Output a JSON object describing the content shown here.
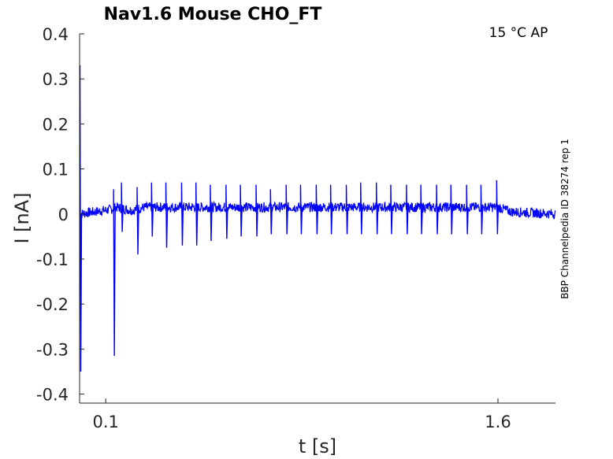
{
  "chart_data": {
    "type": "line",
    "title": "Nav1.6  Mouse  CHO_FT",
    "annotation": "15 °C  AP",
    "side_label": "BBP Channelpedia ID 38274 rep 1",
    "xlabel": "t [s]",
    "ylabel": "I [nA]",
    "xlim": [
      0.0,
      1.82
    ],
    "ylim": [
      -0.42,
      0.4
    ],
    "xticks": [
      0.1,
      1.6
    ],
    "xtick_labels": [
      "0.1",
      "1.6"
    ],
    "yticks": [
      0.4,
      0.3,
      0.2,
      0.1,
      0,
      -0.1,
      -0.2,
      -0.3,
      -0.4
    ],
    "ytick_labels": [
      "0.4",
      "0.3",
      "0.2",
      "0.1",
      "0",
      "-0.1",
      "-0.2",
      "-0.3",
      "-0.4"
    ],
    "grid": false,
    "series": [
      {
        "color": "#0000ff",
        "baseline": [
          [
            0.0,
            0.0
          ],
          [
            0.12,
            0.01
          ],
          [
            0.14,
            0.015
          ],
          [
            0.2,
            0.008
          ],
          [
            0.25,
            0.015
          ],
          [
            1.6,
            0.015
          ],
          [
            1.65,
            0.005
          ],
          [
            1.82,
            0.0
          ]
        ],
        "spikes": [
          {
            "t": 0.0,
            "peak": 0.33,
            "trough": -0.35
          },
          {
            "t": 0.13,
            "peak": 0.055,
            "trough": -0.315
          },
          {
            "t": 0.16,
            "peak": 0.07,
            "trough": -0.04
          },
          {
            "t": 0.22,
            "peak": 0.06,
            "trough": -0.09
          },
          {
            "t": 0.275,
            "peak": 0.07,
            "trough": -0.05
          },
          {
            "t": 0.33,
            "peak": 0.07,
            "trough": -0.075
          },
          {
            "t": 0.39,
            "peak": 0.07,
            "trough": -0.07
          },
          {
            "t": 0.445,
            "peak": 0.07,
            "trough": -0.07
          },
          {
            "t": 0.5,
            "peak": 0.065,
            "trough": -0.06
          },
          {
            "t": 0.56,
            "peak": 0.065,
            "trough": -0.055
          },
          {
            "t": 0.615,
            "peak": 0.065,
            "trough": -0.05
          },
          {
            "t": 0.675,
            "peak": 0.065,
            "trough": -0.05
          },
          {
            "t": 0.73,
            "peak": 0.055,
            "trough": -0.045
          },
          {
            "t": 0.79,
            "peak": 0.065,
            "trough": -0.045
          },
          {
            "t": 0.845,
            "peak": 0.065,
            "trough": -0.045
          },
          {
            "t": 0.905,
            "peak": 0.065,
            "trough": -0.045
          },
          {
            "t": 0.96,
            "peak": 0.065,
            "trough": -0.045
          },
          {
            "t": 1.02,
            "peak": 0.065,
            "trough": -0.045
          },
          {
            "t": 1.075,
            "peak": 0.07,
            "trough": -0.045
          },
          {
            "t": 1.135,
            "peak": 0.07,
            "trough": -0.045
          },
          {
            "t": 1.19,
            "peak": 0.065,
            "trough": -0.045
          },
          {
            "t": 1.25,
            "peak": 0.065,
            "trough": -0.045
          },
          {
            "t": 1.305,
            "peak": 0.065,
            "trough": -0.045
          },
          {
            "t": 1.365,
            "peak": 0.065,
            "trough": -0.045
          },
          {
            "t": 1.42,
            "peak": 0.065,
            "trough": -0.045
          },
          {
            "t": 1.48,
            "peak": 0.065,
            "trough": -0.045
          },
          {
            "t": 1.535,
            "peak": 0.065,
            "trough": -0.045
          },
          {
            "t": 1.595,
            "peak": 0.075,
            "trough": -0.045
          }
        ]
      }
    ]
  }
}
